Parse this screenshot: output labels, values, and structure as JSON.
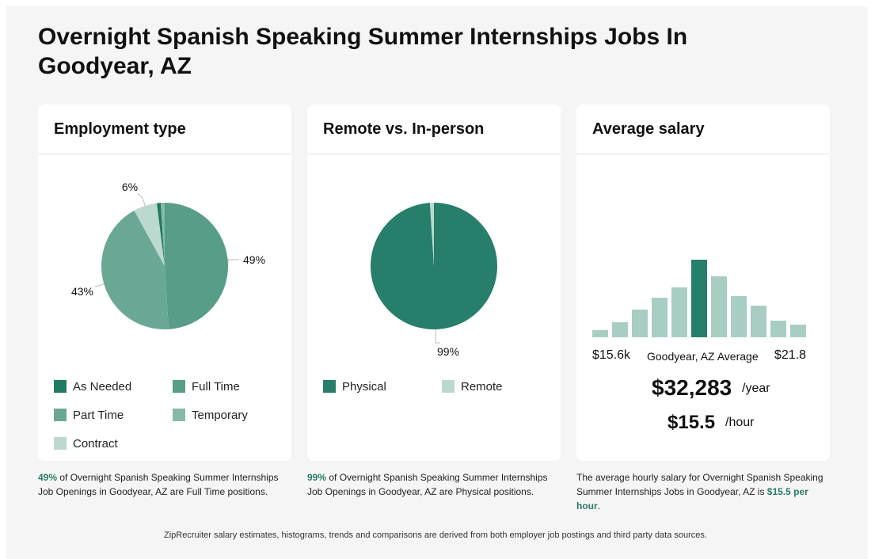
{
  "page": {
    "title": "Overnight Spanish Speaking Summer Internships Jobs In Goodyear, AZ",
    "footer": "ZipRecruiter salary estimates, histograms, trends and comparisons are derived from both employer job postings and third party data sources."
  },
  "employment": {
    "heading": "Employment type",
    "caption_pct": "49%",
    "caption_rest": " of Overnight Spanish Speaking Summer Internships Job Openings in Goodyear, AZ are Full Time positions.",
    "legend": [
      {
        "label": "As Needed",
        "color": "#237a62"
      },
      {
        "label": "Full Time",
        "color": "#579d87"
      },
      {
        "label": "Part Time",
        "color": "#6aa895"
      },
      {
        "label": "Temporary",
        "color": "#86b9aa"
      },
      {
        "label": "Contract",
        "color": "#bcd9d0"
      }
    ]
  },
  "remote": {
    "heading": "Remote vs. In-person",
    "caption_pct": "99%",
    "caption_rest": " of Overnight Spanish Speaking Summer Internships Job Openings in Goodyear, AZ are Physical positions.",
    "legend": [
      {
        "label": "Physical",
        "color": "#277e6a"
      },
      {
        "label": "Remote",
        "color": "#bcd9d0"
      }
    ]
  },
  "salary": {
    "heading": "Average salary",
    "min_label": "$15.6k",
    "mid_label": "Goodyear, AZ Average",
    "max_label": "$21.8",
    "yearly": "$32,283",
    "yearly_unit": "/year",
    "hourly": "$15.5",
    "hourly_unit": "/hour",
    "caption_pre": "The average hourly salary for Overnight Spanish Speaking Summer Internships Jobs in Goodyear, AZ is ",
    "caption_hl": "$15.5 per hour",
    "caption_post": "."
  },
  "chart_data": [
    {
      "type": "pie",
      "slices": [
        {
          "label": "Full Time",
          "value": 49,
          "color": "#579d87"
        },
        {
          "label": "Part Time",
          "value": 43,
          "color": "#6aa895"
        },
        {
          "label": "Contract",
          "value": 6,
          "color": "#bcd9d0"
        },
        {
          "label": "As Needed",
          "value": 1,
          "color": "#237a62"
        },
        {
          "label": "Temporary",
          "value": 1,
          "color": "#86b9aa"
        }
      ],
      "data_labels": [
        {
          "slice": "Full Time",
          "text": "49%"
        },
        {
          "slice": "Part Time",
          "text": "43%"
        },
        {
          "slice": "Contract",
          "text": "6%"
        }
      ]
    },
    {
      "type": "pie",
      "slices": [
        {
          "label": "Physical",
          "value": 99,
          "color": "#277e6a"
        },
        {
          "label": "Remote",
          "value": 1,
          "color": "#bcd9d0"
        }
      ],
      "data_labels": [
        {
          "slice": "Physical",
          "text": "99%"
        }
      ]
    },
    {
      "type": "bar",
      "values": [
        9,
        19,
        35,
        50,
        63,
        98,
        77,
        52,
        40,
        21,
        16
      ],
      "highlight_index": 5,
      "ylim": [
        0,
        100
      ],
      "colors": {
        "bar": "#a8cdc2",
        "highlight": "#277e6a"
      }
    }
  ]
}
